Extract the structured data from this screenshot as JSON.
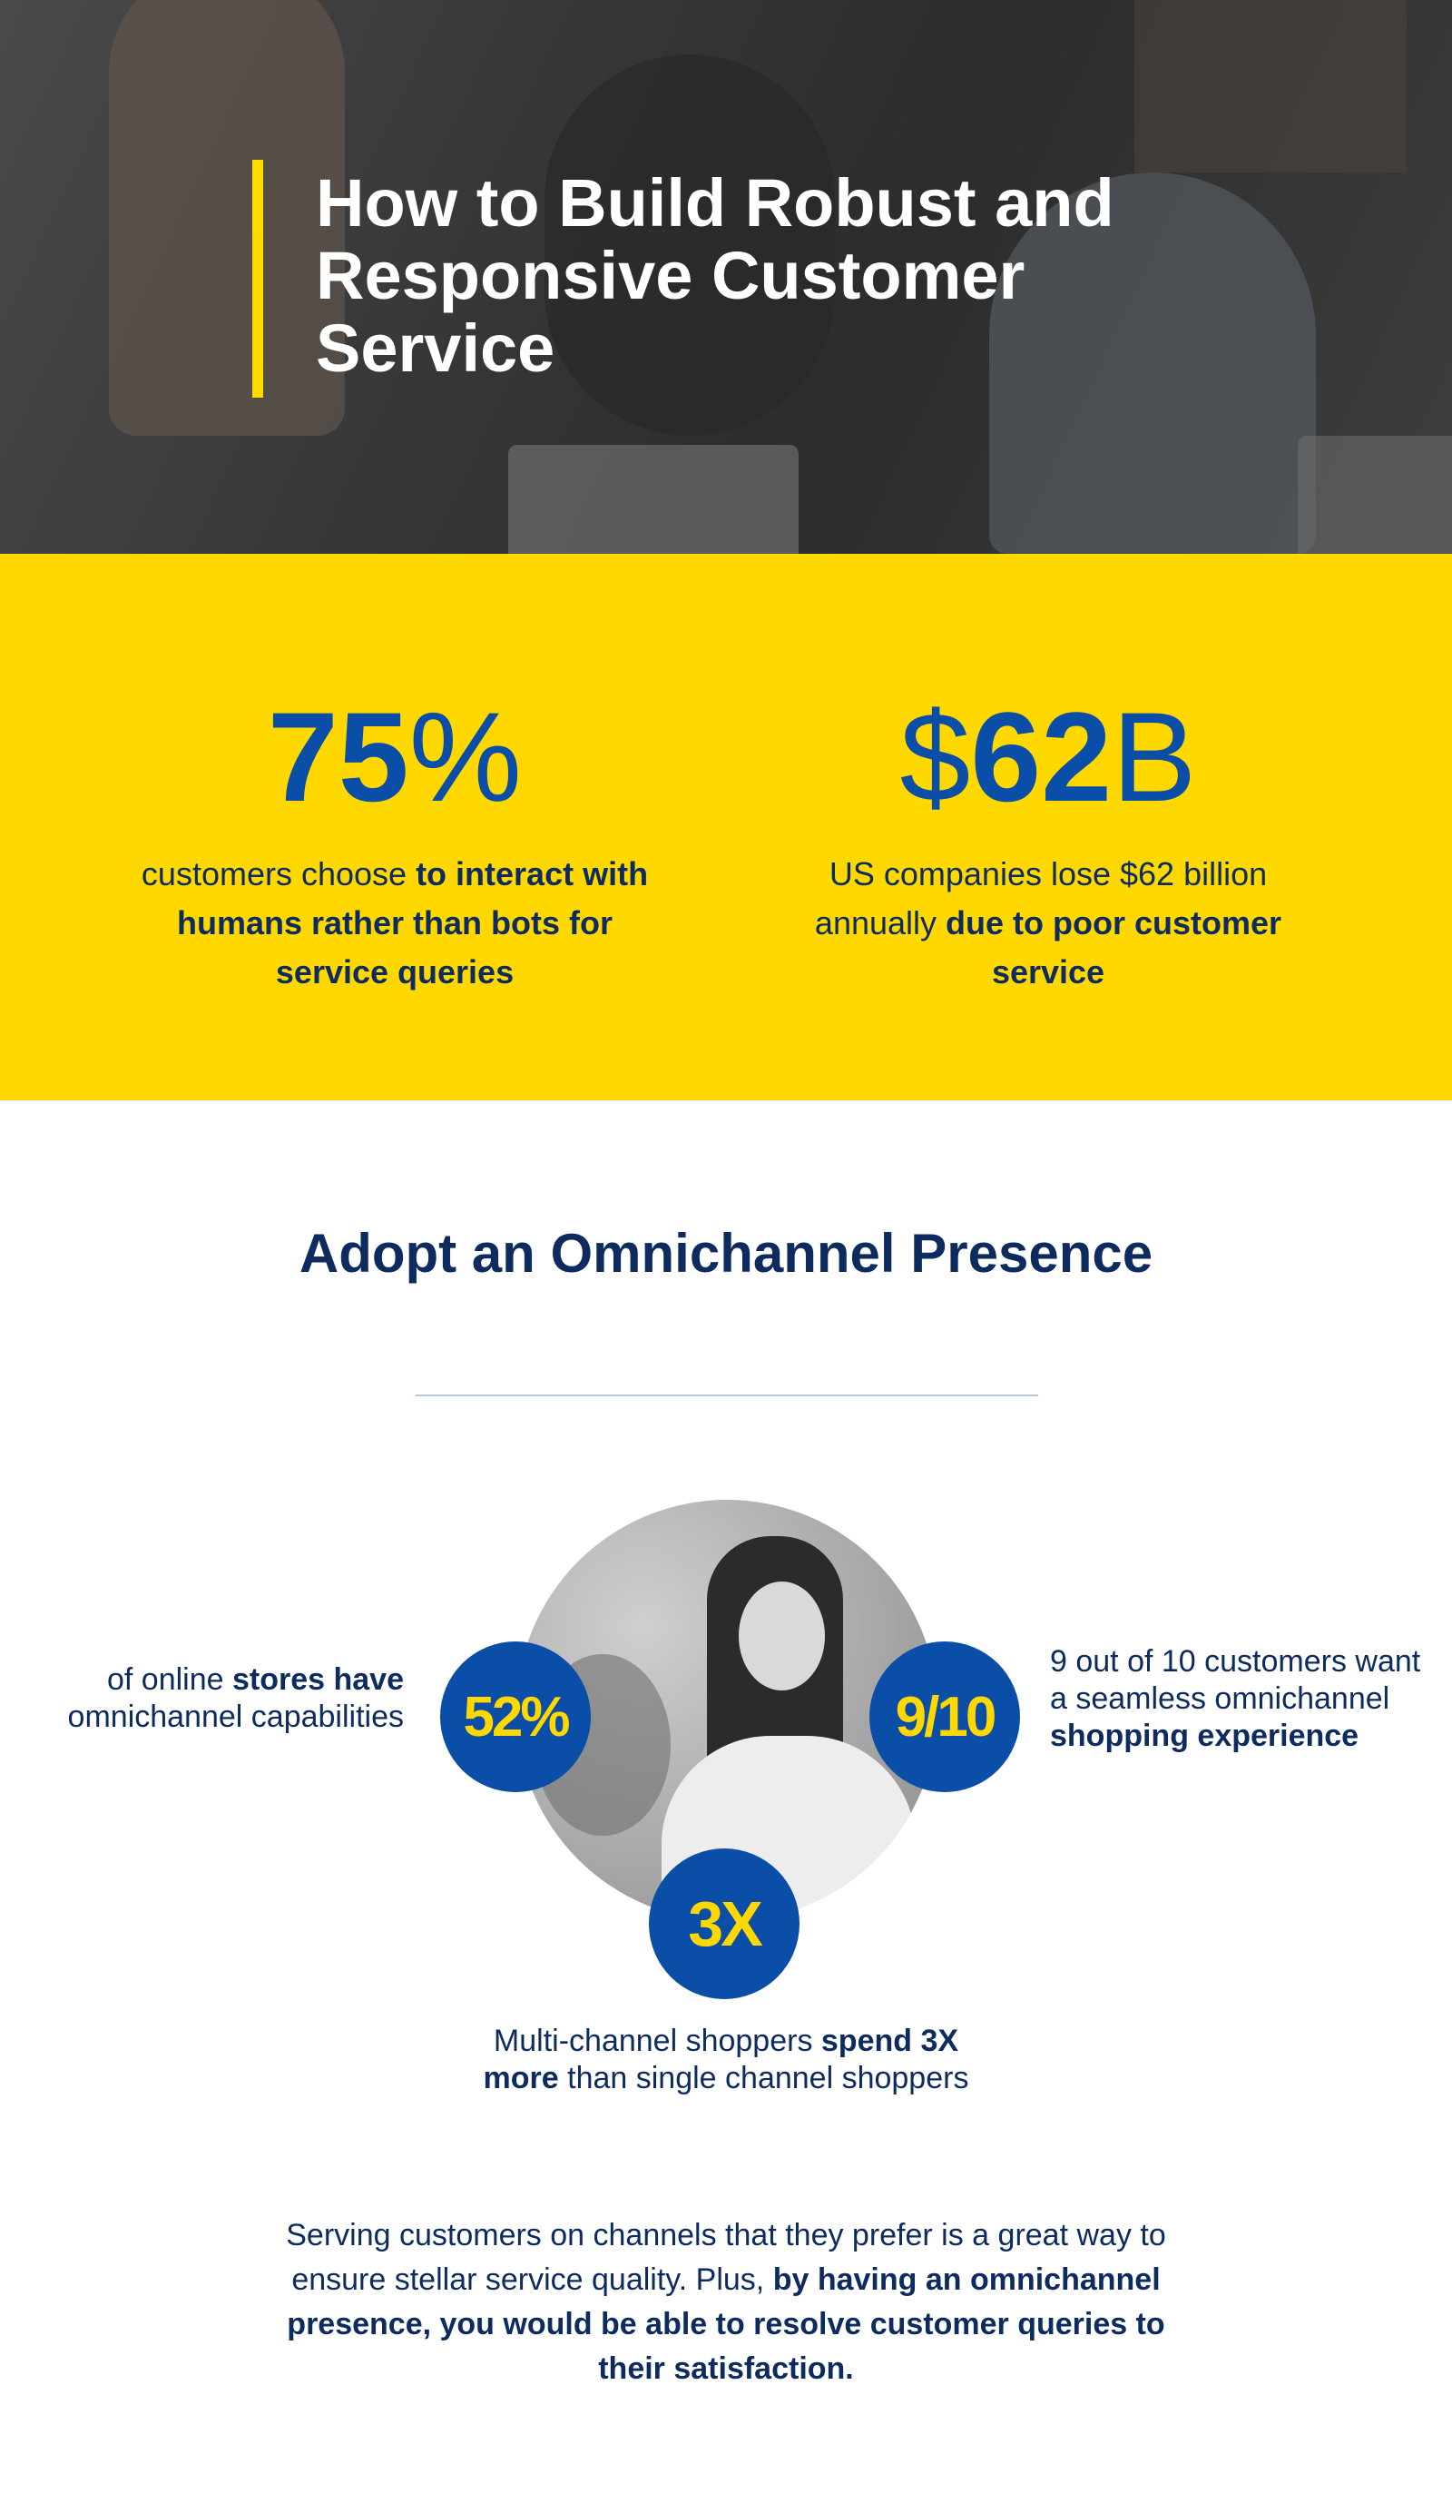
{
  "hero": {
    "title": "How to Build Robust and Responsive Customer Service"
  },
  "stats": {
    "left": {
      "number": "75",
      "unit": "%",
      "text_plain": "customers choose ",
      "text_bold": "to interact with humans rather than bots for service queries"
    },
    "right": {
      "prefix": "$",
      "number": "62",
      "unit": "B",
      "text_plain": "US companies lose $62 billion annually ",
      "text_bold": "due to poor customer service"
    }
  },
  "omnichannel": {
    "title": "Adopt an Omnichannel Presence",
    "stat_52": {
      "value": "52%",
      "caption_a": "of online ",
      "caption_b": "stores have",
      "caption_c": " omnichannel capabilities"
    },
    "stat_910": {
      "value": "9/10",
      "caption_a": "9 out of 10 customers want a seamless omnichannel ",
      "caption_b": "shopping experience"
    },
    "stat_3x": {
      "value": "3X",
      "caption_a": "Multi-channel shoppers ",
      "caption_b": "spend 3X more",
      "caption_c": " than single channel shoppers"
    },
    "outro_plain": "Serving customers on channels that they prefer is a great way to ensure stellar service quality. Plus, ",
    "outro_bold": "by having an omnichannel presence, you would be able to resolve customer queries to their satisfaction."
  },
  "colors": {
    "accent_yellow": "#ffd800",
    "brand_blue": "#0b4ea8",
    "navy_text": "#0d2b5e"
  }
}
